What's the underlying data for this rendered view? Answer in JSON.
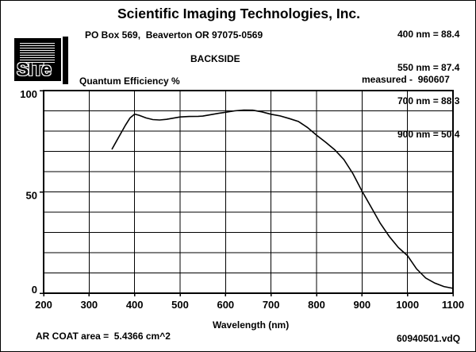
{
  "header": {
    "company": "Scientific Imaging Technologies, Inc.",
    "address": "PO Box 569,  Beaverton OR 97075-0569",
    "mode": "BACKSIDE",
    "measured": "measured -  960607",
    "readings": [
      {
        "text": "400 nm = 88.4"
      },
      {
        "text": "550 nm = 87.4"
      },
      {
        "text": "700 nm = 88.3"
      },
      {
        "text": "900 nm = 50.4"
      }
    ]
  },
  "logo": {
    "text": "SITe"
  },
  "footer": {
    "ar_coat": "AR COAT area =  5.4366 cm^2",
    "filename": "60940501.vdQ"
  },
  "chart_data": {
    "type": "line",
    "title": "Quantum Efficiency %",
    "xlabel": "Wavelength (nm)",
    "ylabel": "Quantum Efficiency %",
    "xlim": [
      200,
      1100
    ],
    "ylim": [
      0,
      100
    ],
    "x_ticks": [
      200,
      300,
      400,
      500,
      600,
      700,
      800,
      900,
      1000,
      1100
    ],
    "y_tick_labels": [
      100,
      50,
      0
    ],
    "y_grid_step": 10,
    "grid": true,
    "legend_position": "none",
    "annotations": [
      "400 nm = 88.4",
      "550 nm = 87.4",
      "700 nm = 88.3",
      "900 nm = 50.4",
      "measured -  960607"
    ],
    "series": [
      {
        "name": "Quantum Efficiency %",
        "x": [
          350,
          360,
          370,
          380,
          390,
          400,
          410,
          425,
          440,
          455,
          470,
          485,
          500,
          520,
          540,
          550,
          565,
          585,
          600,
          620,
          640,
          660,
          680,
          700,
          720,
          740,
          760,
          780,
          800,
          820,
          840,
          860,
          880,
          900,
          920,
          940,
          960,
          980,
          1000,
          1020,
          1040,
          1060,
          1080,
          1100
        ],
        "y": [
          71,
          75,
          79,
          83,
          86.5,
          88.4,
          87.8,
          86.5,
          85.7,
          85.5,
          85.8,
          86.4,
          87,
          87.2,
          87.3,
          87.4,
          88,
          88.8,
          89.3,
          90,
          90.4,
          90.3,
          89.5,
          88.3,
          87.5,
          86.2,
          84.8,
          81.8,
          78,
          74.5,
          70.8,
          66,
          59,
          50.4,
          42.5,
          34.5,
          28,
          22.5,
          18.5,
          12,
          7.5,
          5,
          3.3,
          2.4
        ]
      }
    ]
  }
}
